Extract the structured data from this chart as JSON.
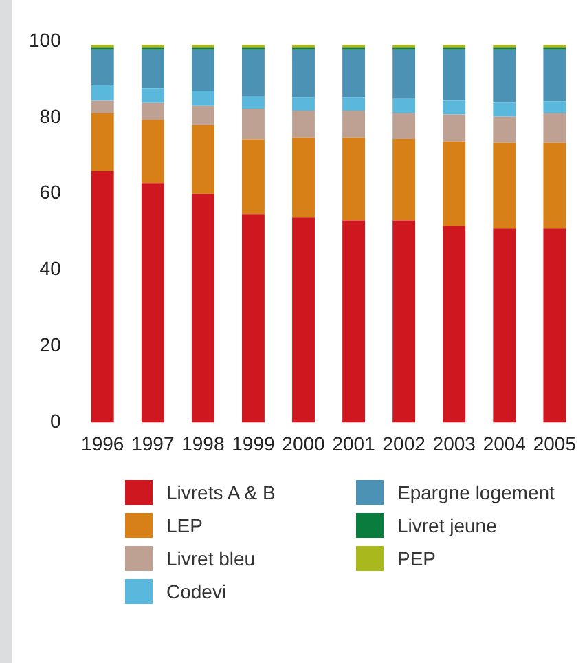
{
  "chart_data": {
    "type": "bar",
    "stacked": true,
    "categories": [
      "1996",
      "1997",
      "1998",
      "1999",
      "2000",
      "2001",
      "2002",
      "2003",
      "2004",
      "2005"
    ],
    "series": [
      {
        "name": "Livrets A & B",
        "color": "#cf1720",
        "values": [
          66,
          62.8,
          60,
          54.7,
          53.8,
          53,
          53,
          51.6,
          50.9,
          50.9
        ]
      },
      {
        "name": "LEP",
        "color": "#d88018",
        "values": [
          15.1,
          16.6,
          18,
          19.6,
          21,
          21.8,
          21.4,
          22.1,
          22.5,
          22.5
        ]
      },
      {
        "name": "Livret bleu",
        "color": "#bea193",
        "values": [
          3.3,
          4.4,
          5.1,
          8,
          7,
          7,
          6.7,
          7.1,
          6.9,
          7.7
        ]
      },
      {
        "name": "Codevi",
        "color": "#5ab8dc",
        "values": [
          4.2,
          3.9,
          3.9,
          3.3,
          3.5,
          3.5,
          3.8,
          3.6,
          3.6,
          3.1
        ]
      },
      {
        "name": "Epargne logement",
        "color": "#4b92b4",
        "values": [
          9.3,
          10.2,
          10.9,
          12.3,
          12.6,
          12.6,
          13,
          13.5,
          14,
          13.7
        ]
      },
      {
        "name": "Livret jeune",
        "color": "#0a7c3e",
        "values": [
          0.4,
          0.4,
          0.4,
          0.4,
          0.4,
          0.4,
          0.4,
          0.4,
          0.4,
          0.4
        ]
      },
      {
        "name": "PEP",
        "color": "#a9b81c",
        "values": [
          0.8,
          0.8,
          0.8,
          0.8,
          0.8,
          0.8,
          0.8,
          0.8,
          0.8,
          0.8
        ]
      }
    ],
    "ylim": [
      0,
      100
    ],
    "yticks": [
      0,
      20,
      40,
      60,
      80,
      100
    ],
    "grid": false,
    "legend": "bottom"
  }
}
